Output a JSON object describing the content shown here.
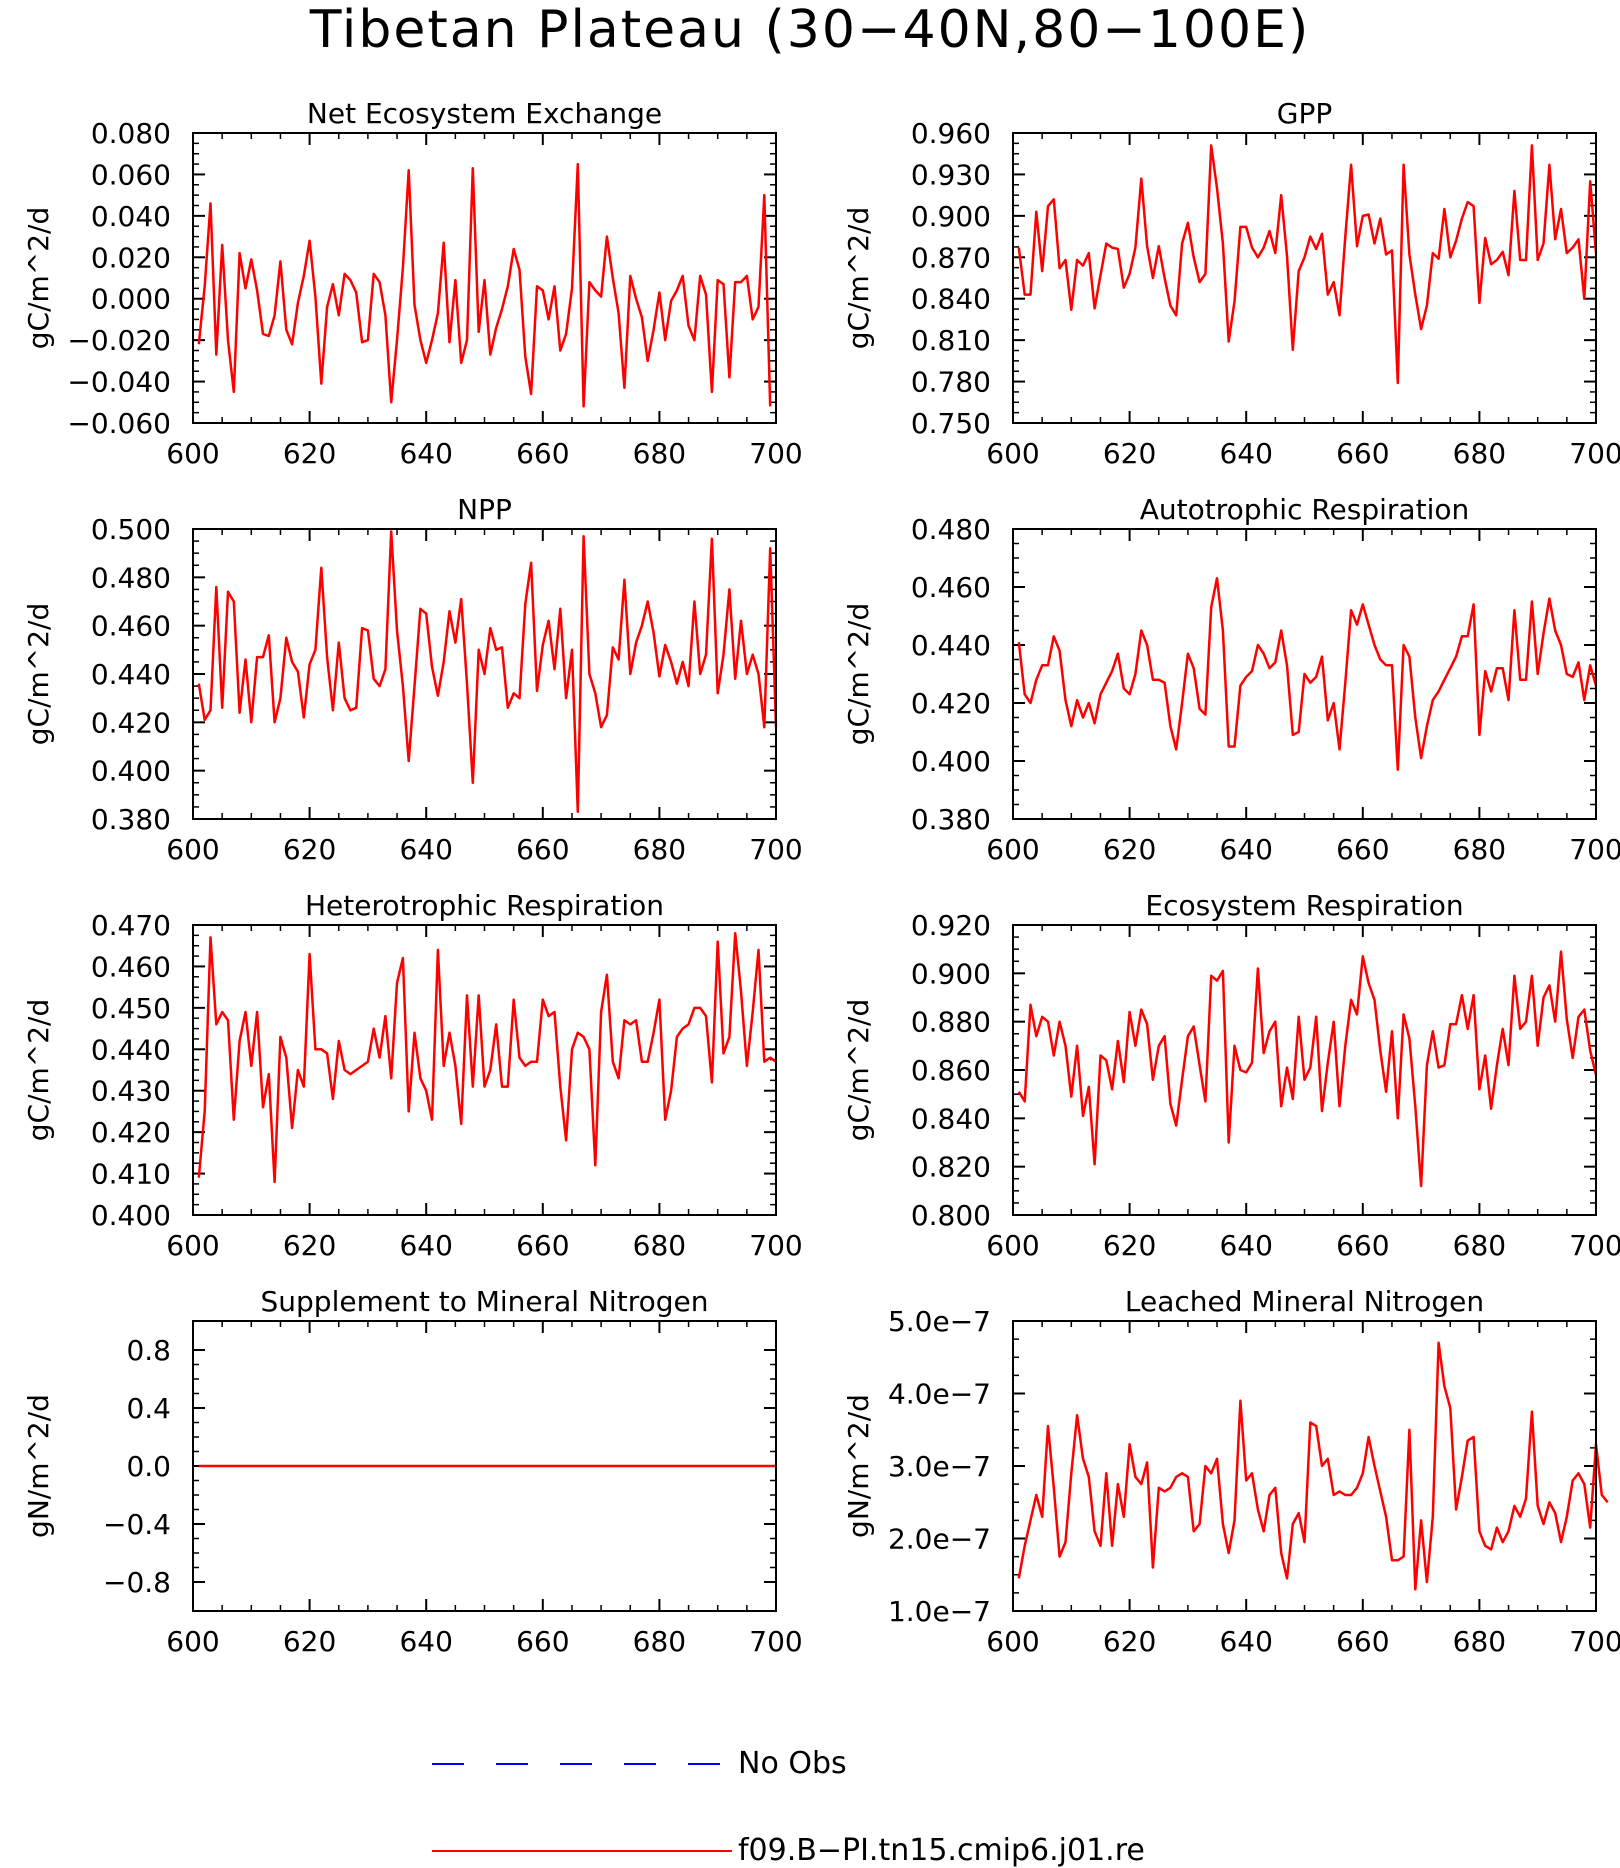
{
  "title": "Tibetan Plateau (30−40N,80−100E)",
  "colors": {
    "model": "#ff0000",
    "obs": "#0000ff",
    "axis": "#000000"
  },
  "legend": {
    "obs_label": "No Obs",
    "model_label": "f09.B−PI.tn15.cmip6.j01.re"
  },
  "chart_data": [
    {
      "type": "line",
      "title": "Net Ecosystem Exchange",
      "ylabel": "gC/m^2/d",
      "xlim": [
        600,
        700
      ],
      "ylim": [
        -0.06,
        0.08
      ],
      "xticks": [
        600,
        620,
        640,
        660,
        680,
        700
      ],
      "yticks": [
        -0.06,
        -0.04,
        -0.02,
        0.0,
        0.02,
        0.04,
        0.06,
        0.08
      ],
      "ytick_labels": [
        "−0.060",
        "−0.040",
        "−0.020",
        "0.000",
        "0.020",
        "0.040",
        "0.060",
        "0.080"
      ],
      "series": [
        {
          "x_start": 601,
          "values": [
            -0.022,
            0.006,
            0.046,
            -0.027,
            0.026,
            -0.02,
            -0.045,
            0.022,
            0.005,
            0.019,
            0.004,
            -0.017,
            -0.018,
            -0.008,
            0.018,
            -0.015,
            -0.022,
            -0.002,
            0.011,
            0.028,
            0.001,
            -0.041,
            -0.004,
            0.007,
            -0.008,
            0.012,
            0.009,
            0.003,
            -0.021,
            -0.02,
            0.012,
            0.008,
            -0.008,
            -0.05,
            -0.02,
            0.015,
            0.062,
            -0.003,
            -0.02,
            -0.031,
            -0.02,
            -0.007,
            0.027,
            -0.021,
            0.009,
            -0.031,
            -0.02,
            0.063,
            -0.016,
            0.009,
            -0.027,
            -0.014,
            -0.005,
            0.006,
            0.024,
            0.014,
            -0.028,
            -0.046,
            0.006,
            0.004,
            -0.01,
            0.006,
            -0.025,
            -0.017,
            0.005,
            0.065,
            -0.052,
            0.008,
            0.004,
            0.001,
            0.03,
            0.01,
            -0.007,
            -0.043,
            0.011,
            0.0,
            -0.009,
            -0.03,
            -0.015,
            0.003,
            -0.02,
            -0.001,
            0.004,
            0.011,
            -0.013,
            -0.02,
            0.011,
            0.002,
            -0.045,
            0.009,
            0.007,
            -0.038,
            0.008,
            0.008,
            0.011,
            -0.01,
            -0.004,
            0.05,
            -0.052
          ]
        }
      ]
    },
    {
      "type": "line",
      "title": "GPP",
      "ylabel": "gC/m^2/d",
      "xlim": [
        600,
        700
      ],
      "ylim": [
        0.75,
        0.96
      ],
      "xticks": [
        600,
        620,
        640,
        660,
        680,
        700
      ],
      "yticks": [
        0.75,
        0.78,
        0.81,
        0.84,
        0.87,
        0.9,
        0.93,
        0.96
      ],
      "ytick_labels": [
        "0.750",
        "0.780",
        "0.810",
        "0.840",
        "0.870",
        "0.900",
        "0.930",
        "0.960"
      ],
      "series": [
        {
          "x_start": 601,
          "values": [
            0.877,
            0.843,
            0.843,
            0.903,
            0.86,
            0.907,
            0.912,
            0.862,
            0.868,
            0.832,
            0.868,
            0.864,
            0.873,
            0.833,
            0.857,
            0.88,
            0.877,
            0.876,
            0.848,
            0.858,
            0.877,
            0.927,
            0.878,
            0.855,
            0.878,
            0.855,
            0.835,
            0.828,
            0.88,
            0.895,
            0.87,
            0.852,
            0.858,
            0.951,
            0.92,
            0.88,
            0.809,
            0.838,
            0.892,
            0.892,
            0.877,
            0.87,
            0.877,
            0.889,
            0.873,
            0.915,
            0.871,
            0.803,
            0.86,
            0.87,
            0.885,
            0.876,
            0.887,
            0.843,
            0.852,
            0.828,
            0.885,
            0.937,
            0.878,
            0.9,
            0.901,
            0.88,
            0.898,
            0.872,
            0.875,
            0.779,
            0.937,
            0.872,
            0.843,
            0.818,
            0.835,
            0.873,
            0.869,
            0.905,
            0.87,
            0.882,
            0.898,
            0.91,
            0.907,
            0.837,
            0.884,
            0.865,
            0.868,
            0.874,
            0.857,
            0.918,
            0.868,
            0.868,
            0.951,
            0.868,
            0.88,
            0.937,
            0.883,
            0.905,
            0.873,
            0.877,
            0.883,
            0.84,
            0.925,
            0.873
          ]
        }
      ]
    },
    {
      "type": "line",
      "title": "NPP",
      "ylabel": "gC/m^2/d",
      "xlim": [
        600,
        700
      ],
      "ylim": [
        0.38,
        0.5
      ],
      "xticks": [
        600,
        620,
        640,
        660,
        680,
        700
      ],
      "yticks": [
        0.38,
        0.4,
        0.42,
        0.44,
        0.46,
        0.48,
        0.5
      ],
      "ytick_labels": [
        "0.380",
        "0.400",
        "0.420",
        "0.440",
        "0.460",
        "0.480",
        "0.500"
      ],
      "series": [
        {
          "x_start": 601,
          "values": [
            0.436,
            0.421,
            0.425,
            0.476,
            0.426,
            0.474,
            0.47,
            0.424,
            0.446,
            0.42,
            0.447,
            0.447,
            0.456,
            0.42,
            0.43,
            0.455,
            0.445,
            0.441,
            0.422,
            0.444,
            0.45,
            0.484,
            0.447,
            0.425,
            0.453,
            0.43,
            0.425,
            0.426,
            0.459,
            0.458,
            0.438,
            0.435,
            0.442,
            0.499,
            0.458,
            0.435,
            0.404,
            0.435,
            0.467,
            0.465,
            0.443,
            0.431,
            0.445,
            0.466,
            0.453,
            0.471,
            0.436,
            0.395,
            0.45,
            0.44,
            0.459,
            0.45,
            0.451,
            0.426,
            0.432,
            0.43,
            0.469,
            0.486,
            0.433,
            0.452,
            0.462,
            0.442,
            0.467,
            0.43,
            0.45,
            0.383,
            0.497,
            0.44,
            0.432,
            0.418,
            0.423,
            0.451,
            0.446,
            0.479,
            0.44,
            0.453,
            0.46,
            0.47,
            0.457,
            0.439,
            0.452,
            0.445,
            0.436,
            0.445,
            0.435,
            0.47,
            0.44,
            0.448,
            0.496,
            0.432,
            0.448,
            0.475,
            0.438,
            0.462,
            0.44,
            0.448,
            0.44,
            0.418,
            0.492,
            0.418
          ]
        }
      ]
    },
    {
      "type": "line",
      "title": "Autotrophic Respiration",
      "ylabel": "gC/m^2/d",
      "xlim": [
        600,
        700
      ],
      "ylim": [
        0.38,
        0.48
      ],
      "xticks": [
        600,
        620,
        640,
        660,
        680,
        700
      ],
      "yticks": [
        0.38,
        0.4,
        0.42,
        0.44,
        0.46,
        0.48
      ],
      "ytick_labels": [
        "0.380",
        "0.400",
        "0.420",
        "0.440",
        "0.460",
        "0.480"
      ],
      "series": [
        {
          "x_start": 601,
          "values": [
            0.441,
            0.423,
            0.42,
            0.428,
            0.433,
            0.433,
            0.443,
            0.438,
            0.421,
            0.412,
            0.421,
            0.415,
            0.42,
            0.413,
            0.423,
            0.427,
            0.431,
            0.437,
            0.425,
            0.423,
            0.43,
            0.445,
            0.44,
            0.428,
            0.428,
            0.427,
            0.412,
            0.404,
            0.42,
            0.437,
            0.432,
            0.418,
            0.416,
            0.453,
            0.463,
            0.445,
            0.405,
            0.405,
            0.426,
            0.429,
            0.431,
            0.44,
            0.437,
            0.432,
            0.434,
            0.445,
            0.433,
            0.409,
            0.41,
            0.43,
            0.427,
            0.429,
            0.436,
            0.414,
            0.42,
            0.404,
            0.427,
            0.452,
            0.447,
            0.454,
            0.447,
            0.44,
            0.435,
            0.433,
            0.433,
            0.397,
            0.44,
            0.436,
            0.415,
            0.401,
            0.412,
            0.421,
            0.424,
            0.428,
            0.432,
            0.436,
            0.443,
            0.443,
            0.454,
            0.409,
            0.431,
            0.424,
            0.432,
            0.432,
            0.421,
            0.452,
            0.428,
            0.428,
            0.455,
            0.43,
            0.444,
            0.456,
            0.445,
            0.44,
            0.43,
            0.429,
            0.434,
            0.421,
            0.433,
            0.426
          ]
        }
      ]
    },
    {
      "type": "line",
      "title": "Heterotrophic Respiration",
      "ylabel": "gC/m^2/d",
      "xlim": [
        600,
        700
      ],
      "ylim": [
        0.4,
        0.47
      ],
      "xticks": [
        600,
        620,
        640,
        660,
        680,
        700
      ],
      "yticks": [
        0.4,
        0.41,
        0.42,
        0.43,
        0.44,
        0.45,
        0.46,
        0.47
      ],
      "ytick_labels": [
        "0.400",
        "0.410",
        "0.420",
        "0.430",
        "0.440",
        "0.450",
        "0.460",
        "0.470"
      ],
      "series": [
        {
          "x_start": 601,
          "values": [
            0.409,
            0.425,
            0.467,
            0.446,
            0.449,
            0.447,
            0.423,
            0.442,
            0.449,
            0.436,
            0.449,
            0.426,
            0.434,
            0.408,
            0.443,
            0.438,
            0.421,
            0.435,
            0.431,
            0.463,
            0.44,
            0.44,
            0.439,
            0.428,
            0.442,
            0.435,
            0.434,
            0.435,
            0.436,
            0.437,
            0.445,
            0.438,
            0.448,
            0.433,
            0.456,
            0.462,
            0.425,
            0.444,
            0.433,
            0.43,
            0.423,
            0.464,
            0.436,
            0.444,
            0.436,
            0.422,
            0.453,
            0.431,
            0.453,
            0.431,
            0.435,
            0.446,
            0.431,
            0.431,
            0.452,
            0.438,
            0.436,
            0.437,
            0.437,
            0.452,
            0.448,
            0.449,
            0.431,
            0.418,
            0.44,
            0.444,
            0.443,
            0.44,
            0.412,
            0.449,
            0.458,
            0.437,
            0.433,
            0.447,
            0.446,
            0.447,
            0.437,
            0.437,
            0.444,
            0.452,
            0.423,
            0.43,
            0.443,
            0.445,
            0.446,
            0.45,
            0.45,
            0.448,
            0.432,
            0.466,
            0.439,
            0.443,
            0.468,
            0.454,
            0.436,
            0.449,
            0.464,
            0.437,
            0.438,
            0.437
          ]
        }
      ]
    },
    {
      "type": "line",
      "title": "Ecosystem Respiration",
      "ylabel": "gC/m^2/d",
      "xlim": [
        600,
        700
      ],
      "ylim": [
        0.8,
        0.92
      ],
      "xticks": [
        600,
        620,
        640,
        660,
        680,
        700
      ],
      "yticks": [
        0.8,
        0.82,
        0.84,
        0.86,
        0.88,
        0.9,
        0.92
      ],
      "ytick_labels": [
        "0.800",
        "0.820",
        "0.840",
        "0.860",
        "0.880",
        "0.900",
        "0.920"
      ],
      "series": [
        {
          "x_start": 601,
          "values": [
            0.851,
            0.847,
            0.887,
            0.874,
            0.882,
            0.88,
            0.866,
            0.88,
            0.87,
            0.849,
            0.87,
            0.841,
            0.853,
            0.821,
            0.866,
            0.864,
            0.852,
            0.872,
            0.855,
            0.884,
            0.87,
            0.885,
            0.879,
            0.856,
            0.87,
            0.874,
            0.846,
            0.837,
            0.856,
            0.874,
            0.878,
            0.862,
            0.847,
            0.899,
            0.897,
            0.901,
            0.83,
            0.87,
            0.86,
            0.859,
            0.863,
            0.902,
            0.867,
            0.876,
            0.88,
            0.845,
            0.861,
            0.848,
            0.882,
            0.856,
            0.861,
            0.882,
            0.843,
            0.863,
            0.88,
            0.845,
            0.87,
            0.889,
            0.883,
            0.907,
            0.896,
            0.889,
            0.868,
            0.851,
            0.876,
            0.84,
            0.883,
            0.873,
            0.845,
            0.812,
            0.862,
            0.876,
            0.861,
            0.862,
            0.879,
            0.879,
            0.891,
            0.877,
            0.891,
            0.852,
            0.866,
            0.844,
            0.862,
            0.877,
            0.862,
            0.899,
            0.877,
            0.88,
            0.899,
            0.87,
            0.89,
            0.895,
            0.88,
            0.909,
            0.881,
            0.865,
            0.882,
            0.885,
            0.868,
            0.858
          ]
        }
      ]
    },
    {
      "type": "line",
      "title": "Supplement to Mineral Nitrogen",
      "ylabel": "gN/m^2/d",
      "xlim": [
        600,
        700
      ],
      "ylim": [
        -1.0,
        1.0
      ],
      "xticks": [
        600,
        620,
        640,
        660,
        680,
        700
      ],
      "yticks": [
        -0.8,
        -0.4,
        0.0,
        0.4,
        0.8
      ],
      "ytick_labels": [
        "−0.8",
        "−0.4",
        "0.0",
        "0.4",
        "0.8"
      ],
      "series": [
        {
          "x": [
            601,
            700
          ],
          "values": [
            0.0,
            0.0
          ]
        }
      ]
    },
    {
      "type": "line",
      "title": "Leached Mineral Nitrogen",
      "ylabel": "gN/m^2/d",
      "xlim": [
        600,
        700
      ],
      "ylim": [
        1e-07,
        5e-07
      ],
      "xticks": [
        600,
        620,
        640,
        660,
        680,
        700
      ],
      "yticks": [
        1e-07,
        2e-07,
        3e-07,
        4e-07,
        5e-07
      ],
      "ytick_labels": [
        "1.0e−7",
        "2.0e−7",
        "3.0e−7",
        "4.0e−7",
        "5.0e−7"
      ],
      "series": [
        {
          "x_start": 601,
          "values": [
            1.45e-07,
            1.9e-07,
            2.25e-07,
            2.6e-07,
            2.3e-07,
            3.55e-07,
            2.7e-07,
            1.75e-07,
            1.95e-07,
            2.9e-07,
            3.7e-07,
            3.1e-07,
            2.85e-07,
            2.1e-07,
            1.9e-07,
            2.9e-07,
            1.9e-07,
            2.75e-07,
            2.3e-07,
            3.3e-07,
            2.85e-07,
            2.75e-07,
            3.05e-07,
            1.6e-07,
            2.7e-07,
            2.65e-07,
            2.7e-07,
            2.85e-07,
            2.9e-07,
            2.85e-07,
            2.1e-07,
            2.2e-07,
            3e-07,
            2.9e-07,
            3.1e-07,
            2.2e-07,
            1.8e-07,
            2.25e-07,
            3.9e-07,
            2.8e-07,
            2.9e-07,
            2.4e-07,
            2.1e-07,
            2.6e-07,
            2.7e-07,
            1.8e-07,
            1.45e-07,
            2.2e-07,
            2.35e-07,
            1.95e-07,
            3.6e-07,
            3.55e-07,
            3e-07,
            3.1e-07,
            2.6e-07,
            2.65e-07,
            2.6e-07,
            2.6e-07,
            2.7e-07,
            2.9e-07,
            3.4e-07,
            3e-07,
            2.65e-07,
            2.3e-07,
            1.7e-07,
            1.7e-07,
            1.75e-07,
            3.5e-07,
            1.3e-07,
            2.25e-07,
            1.4e-07,
            2.3e-07,
            4.7e-07,
            4.1e-07,
            3.8e-07,
            2.4e-07,
            2.85e-07,
            3.35e-07,
            3.4e-07,
            2.1e-07,
            1.9e-07,
            1.85e-07,
            2.15e-07,
            1.95e-07,
            2.1e-07,
            2.45e-07,
            2.3e-07,
            2.55e-07,
            3.75e-07,
            2.45e-07,
            2.2e-07,
            2.5e-07,
            2.35e-07,
            1.95e-07,
            2.3e-07,
            2.8e-07,
            2.9e-07,
            2.75e-07,
            2.15e-07,
            3.3e-07,
            2.6e-07,
            2.5e-07
          ]
        }
      ]
    }
  ]
}
